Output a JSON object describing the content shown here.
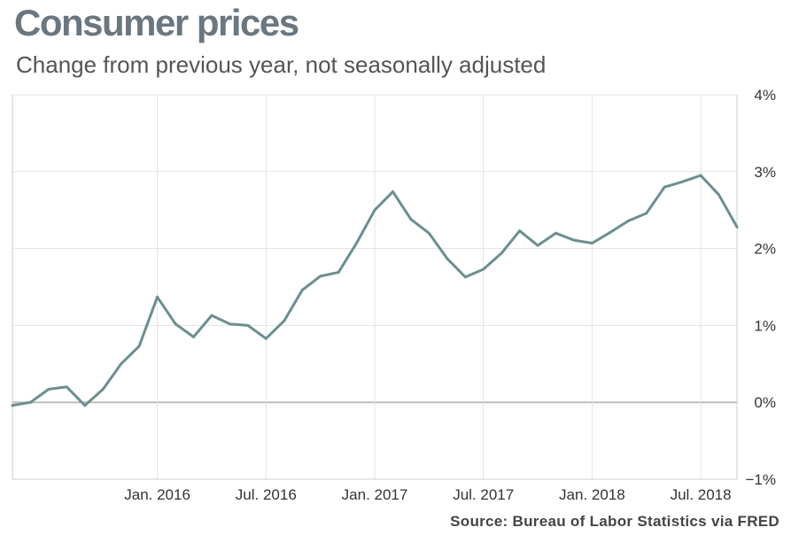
{
  "chart_data": {
    "type": "line",
    "title": "Consumer prices",
    "subtitle": "Change from previous year, not seasonally adjusted",
    "source": "Source: Bureau of Labor Statistics via FRED",
    "xlabel": "",
    "ylabel": "",
    "x_ticks": [
      "Jan. 2016",
      "Jul. 2016",
      "Jan. 2017",
      "Jul. 2017",
      "Jan. 2018",
      "Jul. 2018"
    ],
    "y_ticks": [
      "4%",
      "3%",
      "2%",
      "1%",
      "0%",
      "−1%"
    ],
    "ylim": [
      -1,
      4
    ],
    "xlim": [
      "2015-05",
      "2018-09"
    ],
    "grid": true,
    "y_axis_position": "right",
    "line_color": "#6b8f8f",
    "series": [
      {
        "x": [
          "2015-05",
          "2015-06",
          "2015-07",
          "2015-08",
          "2015-09",
          "2015-10",
          "2015-11",
          "2015-12",
          "2016-01",
          "2016-02",
          "2016-03",
          "2016-04",
          "2016-05",
          "2016-06",
          "2016-07",
          "2016-08",
          "2016-09",
          "2016-10",
          "2016-11",
          "2016-12",
          "2017-01",
          "2017-02",
          "2017-03",
          "2017-04",
          "2017-05",
          "2017-06",
          "2017-07",
          "2017-08",
          "2017-09",
          "2017-10",
          "2017-11",
          "2017-12",
          "2018-01",
          "2018-02",
          "2018-03",
          "2018-04",
          "2018-05",
          "2018-06",
          "2018-07",
          "2018-08",
          "2018-09"
        ],
        "values": [
          -0.04,
          0.0,
          0.17,
          0.2,
          -0.04,
          0.17,
          0.5,
          0.73,
          1.37,
          1.02,
          0.85,
          1.13,
          1.02,
          1.0,
          0.83,
          1.06,
          1.46,
          1.64,
          1.69,
          2.07,
          2.5,
          2.74,
          2.38,
          2.2,
          1.87,
          1.63,
          1.73,
          1.94,
          2.23,
          2.04,
          2.2,
          2.11,
          2.07,
          2.21,
          2.36,
          2.46,
          2.8,
          2.87,
          2.95,
          2.7,
          2.28
        ]
      }
    ]
  }
}
